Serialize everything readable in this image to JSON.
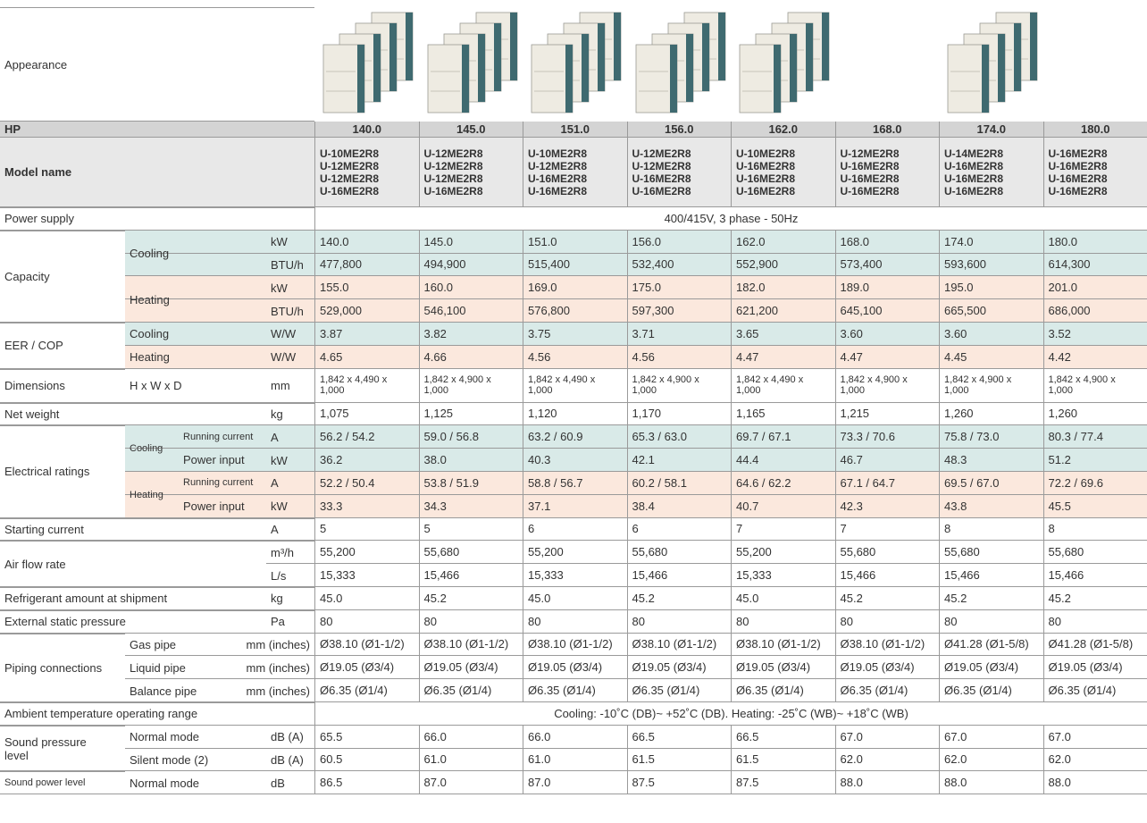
{
  "table": {
    "appearance_label": "Appearance",
    "hp_label": "HP",
    "hp": [
      "140.0",
      "145.0",
      "151.0",
      "156.0",
      "162.0",
      "168.0",
      "174.0",
      "180.0"
    ],
    "model_label": "Model name",
    "models": [
      [
        "U-10ME2R8",
        "U-12ME2R8",
        "U-12ME2R8",
        "U-16ME2R8"
      ],
      [
        "U-12ME2R8",
        "U-12ME2R8",
        "U-12ME2R8",
        "U-16ME2R8"
      ],
      [
        "U-10ME2R8",
        "U-12ME2R8",
        "U-16ME2R8",
        "U-16ME2R8"
      ],
      [
        "U-12ME2R8",
        "U-12ME2R8",
        "U-16ME2R8",
        "U-16ME2R8"
      ],
      [
        "U-10ME2R8",
        "U-16ME2R8",
        "U-16ME2R8",
        "U-16ME2R8"
      ],
      [
        "U-12ME2R8",
        "U-16ME2R8",
        "U-16ME2R8",
        "U-16ME2R8"
      ],
      [
        "U-14ME2R8",
        "U-16ME2R8",
        "U-16ME2R8",
        "U-16ME2R8"
      ],
      [
        "U-16ME2R8",
        "U-16ME2R8",
        "U-16ME2R8",
        "U-16ME2R8"
      ]
    ],
    "groups": [
      {
        "label": "Power supply",
        "rows": [
          {
            "span": "400/415V, 3 phase - 50Hz"
          }
        ]
      },
      {
        "label": "Capacity",
        "subgroups": [
          {
            "label": "Cooling",
            "color": "#d9eae8",
            "rows": [
              {
                "unit": "kW",
                "values": [
                  "140.0",
                  "145.0",
                  "151.0",
                  "156.0",
                  "162.0",
                  "168.0",
                  "174.0",
                  "180.0"
                ]
              },
              {
                "unit": "BTU/h",
                "values": [
                  "477,800",
                  "494,900",
                  "515,400",
                  "532,400",
                  "552,900",
                  "573,400",
                  "593,600",
                  "614,300"
                ]
              }
            ]
          },
          {
            "label": "Heating",
            "color": "#fbe8dd",
            "rows": [
              {
                "unit": "kW",
                "values": [
                  "155.0",
                  "160.0",
                  "169.0",
                  "175.0",
                  "182.0",
                  "189.0",
                  "195.0",
                  "201.0"
                ]
              },
              {
                "unit": "BTU/h",
                "values": [
                  "529,000",
                  "546,100",
                  "576,800",
                  "597,300",
                  "621,200",
                  "645,100",
                  "665,500",
                  "686,000"
                ]
              }
            ]
          }
        ]
      },
      {
        "label": "EER / COP",
        "subgroups": [
          {
            "label": "Cooling",
            "color": "#d9eae8",
            "rows": [
              {
                "unit": "W/W",
                "values": [
                  "3.87",
                  "3.82",
                  "3.75",
                  "3.71",
                  "3.65",
                  "3.60",
                  "3.60",
                  "3.52"
                ]
              }
            ]
          },
          {
            "label": "Heating",
            "color": "#fbe8dd",
            "rows": [
              {
                "unit": "W/W",
                "values": [
                  "4.65",
                  "4.66",
                  "4.56",
                  "4.56",
                  "4.47",
                  "4.47",
                  "4.45",
                  "4.42"
                ]
              }
            ]
          }
        ]
      },
      {
        "label": "Dimensions",
        "subgroups": [
          {
            "label": "H x W x D",
            "rows": [
              {
                "unit": "mm",
                "values": [
                  "1,842 x 4,490 x 1,000",
                  "1,842 x 4,900 x 1,000",
                  "1,842 x 4,490 x 1,000",
                  "1,842 x 4,900 x 1,000",
                  "1,842 x 4,490 x 1,000",
                  "1,842 x 4,900 x 1,000",
                  "1,842 x 4,900 x 1,000",
                  "1,842 x 4,900 x 1,000"
                ]
              }
            ]
          }
        ]
      },
      {
        "label": "Net weight",
        "rows": [
          {
            "unit": "kg",
            "values": [
              "1,075",
              "1,125",
              "1,120",
              "1,170",
              "1,165",
              "1,215",
              "1,260",
              "1,260"
            ]
          }
        ]
      },
      {
        "label": "Electrical ratings",
        "subgroups": [
          {
            "label": "Cooling",
            "color": "#d9eae8",
            "rows": [
              {
                "label": "Running current",
                "unit": "A",
                "values": [
                  "56.2 / 54.2",
                  "59.0 / 56.8",
                  "63.2 / 60.9",
                  "65.3 / 63.0",
                  "69.7 / 67.1",
                  "73.3 / 70.6",
                  "75.8 / 73.0",
                  "80.3 / 77.4"
                ]
              },
              {
                "label": "Power input",
                "unit": "kW",
                "values": [
                  "36.2",
                  "38.0",
                  "40.3",
                  "42.1",
                  "44.4",
                  "46.7",
                  "48.3",
                  "51.2"
                ]
              }
            ]
          },
          {
            "label": "Heating",
            "color": "#fbe8dd",
            "rows": [
              {
                "label": "Running current",
                "unit": "A",
                "values": [
                  "52.2 / 50.4",
                  "53.8 / 51.9",
                  "58.8 / 56.7",
                  "60.2 / 58.1",
                  "64.6 / 62.2",
                  "67.1 / 64.7",
                  "69.5 / 67.0",
                  "72.2 / 69.6"
                ]
              },
              {
                "label": "Power input",
                "unit": "kW",
                "values": [
                  "33.3",
                  "34.3",
                  "37.1",
                  "38.4",
                  "40.7",
                  "42.3",
                  "43.8",
                  "45.5"
                ]
              }
            ]
          }
        ]
      },
      {
        "label": "Starting current",
        "rows": [
          {
            "unit": "A",
            "values": [
              "5",
              "5",
              "6",
              "6",
              "7",
              "7",
              "8",
              "8"
            ]
          }
        ]
      },
      {
        "label": "Air flow rate",
        "rows": [
          {
            "unit": "m³/h",
            "values": [
              "55,200",
              "55,680",
              "55,200",
              "55,680",
              "55,200",
              "55,680",
              "55,680",
              "55,680"
            ]
          },
          {
            "unit": "L/s",
            "values": [
              "15,333",
              "15,466",
              "15,333",
              "15,466",
              "15,333",
              "15,466",
              "15,466",
              "15,466"
            ]
          }
        ]
      },
      {
        "label": "Refrigerant amount at shipment",
        "rows": [
          {
            "unit": "kg",
            "values": [
              "45.0",
              "45.2",
              "45.0",
              "45.2",
              "45.0",
              "45.2",
              "45.2",
              "45.2"
            ]
          }
        ]
      },
      {
        "label": "External static pressure",
        "rows": [
          {
            "unit": "Pa",
            "values": [
              "80",
              "80",
              "80",
              "80",
              "80",
              "80",
              "80",
              "80"
            ]
          }
        ]
      },
      {
        "label": "Piping connections",
        "subgroups": [
          {
            "label": "Gas pipe",
            "rows": [
              {
                "unit": "mm (inches)",
                "values": [
                  "Ø38.10 (Ø1-1/2)",
                  "Ø38.10 (Ø1-1/2)",
                  "Ø38.10 (Ø1-1/2)",
                  "Ø38.10 (Ø1-1/2)",
                  "Ø38.10 (Ø1-1/2)",
                  "Ø38.10 (Ø1-1/2)",
                  "Ø41.28 (Ø1-5/8)",
                  "Ø41.28 (Ø1-5/8)"
                ]
              }
            ]
          },
          {
            "label": "Liquid pipe",
            "rows": [
              {
                "unit": "mm (inches)",
                "values": [
                  "Ø19.05 (Ø3/4)",
                  "Ø19.05 (Ø3/4)",
                  "Ø19.05 (Ø3/4)",
                  "Ø19.05 (Ø3/4)",
                  "Ø19.05 (Ø3/4)",
                  "Ø19.05 (Ø3/4)",
                  "Ø19.05 (Ø3/4)",
                  "Ø19.05 (Ø3/4)"
                ]
              }
            ]
          },
          {
            "label": "Balance pipe",
            "rows": [
              {
                "unit": "mm (inches)",
                "values": [
                  "Ø6.35 (Ø1/4)",
                  "Ø6.35 (Ø1/4)",
                  "Ø6.35 (Ø1/4)",
                  "Ø6.35 (Ø1/4)",
                  "Ø6.35 (Ø1/4)",
                  "Ø6.35 (Ø1/4)",
                  "Ø6.35 (Ø1/4)",
                  "Ø6.35 (Ø1/4)"
                ]
              }
            ]
          }
        ]
      },
      {
        "label": "Ambient temperature operating range",
        "rows": [
          {
            "span": "Cooling: -10˚C (DB)~ +52˚C (DB). Heating: -25˚C (WB)~ +18˚C (WB)"
          }
        ]
      },
      {
        "label": "Sound pressure level",
        "subgroups": [
          {
            "label": "Normal mode",
            "rows": [
              {
                "unit": "dB (A)",
                "values": [
                  "65.5",
                  "66.0",
                  "66.0",
                  "66.5",
                  "66.5",
                  "67.0",
                  "67.0",
                  "67.0"
                ]
              }
            ]
          },
          {
            "label": "Silent mode (2)",
            "rows": [
              {
                "unit": "dB (A)",
                "values": [
                  "60.5",
                  "61.0",
                  "61.0",
                  "61.5",
                  "61.5",
                  "62.0",
                  "62.0",
                  "62.0"
                ]
              }
            ]
          }
        ]
      },
      {
        "label": "Sound power level",
        "subgroups": [
          {
            "label": "Normal mode",
            "rows": [
              {
                "unit": "dB",
                "values": [
                  "86.5",
                  "87.0",
                  "87.0",
                  "87.5",
                  "87.5",
                  "88.0",
                  "88.0",
                  "88.0"
                ]
              }
            ]
          }
        ]
      }
    ]
  }
}
